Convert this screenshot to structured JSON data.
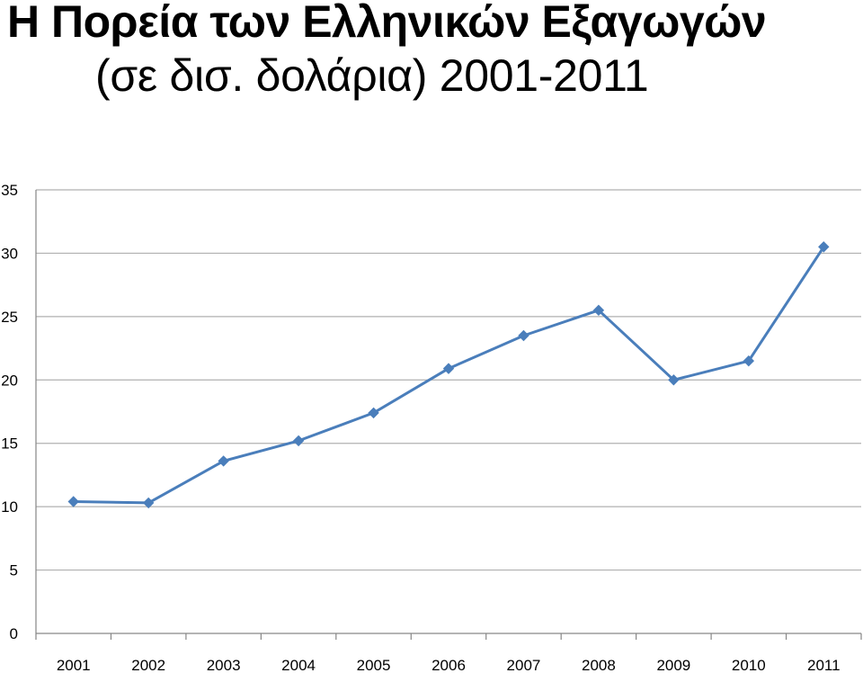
{
  "title": {
    "line1": "Η Πορεία των Ελληνικών Εξαγωγών",
    "line2": "(σε δισ. δολάρια) 2001-2011"
  },
  "colors": {
    "series": "#4a7ebb",
    "grid": "#b0b0b0",
    "axis": "#868686"
  },
  "chart_data": {
    "type": "line",
    "title": "Η Πορεία των Ελληνικών Εξαγωγών (σε δισ. δολάρια) 2001-2011",
    "xlabel": "",
    "ylabel": "",
    "categories": [
      "2001",
      "2002",
      "2003",
      "2004",
      "2005",
      "2006",
      "2007",
      "2008",
      "2009",
      "2010",
      "2011"
    ],
    "series": [
      {
        "values": [
          10.4,
          10.3,
          13.6,
          15.2,
          17.4,
          20.9,
          23.5,
          25.5,
          20.0,
          21.5,
          30.5
        ],
        "marker": "diamond"
      }
    ],
    "ylim": [
      0,
      35
    ],
    "yticks": [
      0,
      5,
      10,
      15,
      20,
      25,
      30,
      35
    ],
    "grid": true,
    "legend": "none"
  }
}
